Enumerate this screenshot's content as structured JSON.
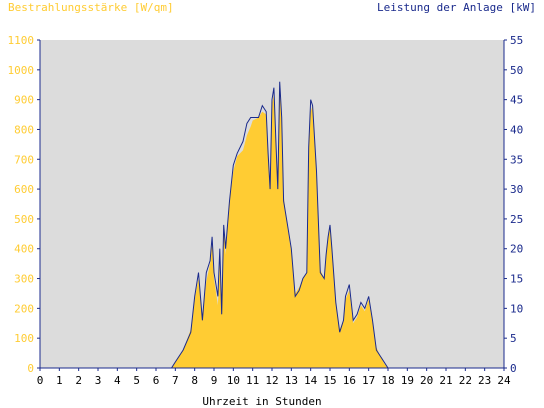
{
  "colors": {
    "irradiance": "#ffcc33",
    "power": "#1a2a8c",
    "plot_bg": "#dcdcdc",
    "axis": "#1a2a8c"
  },
  "chart_data": {
    "type": "area",
    "left_title": "Bestrahlungsstärke [W/qm]",
    "right_title": "Leistung der Anlage [kW]",
    "xlabel": "Uhrzeit in Stunden",
    "x_ticks": [
      0,
      1,
      2,
      3,
      4,
      5,
      6,
      7,
      8,
      9,
      10,
      11,
      12,
      13,
      14,
      15,
      16,
      17,
      18,
      19,
      20,
      21,
      22,
      23,
      24
    ],
    "y_left_ticks": [
      0,
      100,
      200,
      300,
      400,
      500,
      600,
      700,
      800,
      900,
      1000,
      1100
    ],
    "y_right_ticks": [
      0,
      5,
      10,
      15,
      20,
      25,
      30,
      35,
      40,
      45,
      50,
      55
    ],
    "xlim": [
      0,
      24
    ],
    "ylim_left": [
      0,
      1100
    ],
    "ylim_right": [
      0,
      55
    ],
    "series": [
      {
        "name": "Bestrahlungsstärke",
        "axis": "left",
        "style": "filled-area",
        "points": [
          [
            0,
            0
          ],
          [
            6.8,
            0
          ],
          [
            7.0,
            20
          ],
          [
            7.4,
            60
          ],
          [
            7.8,
            130
          ],
          [
            8.0,
            230
          ],
          [
            8.2,
            300
          ],
          [
            8.4,
            170
          ],
          [
            8.6,
            290
          ],
          [
            8.8,
            350
          ],
          [
            8.9,
            420
          ],
          [
            9.0,
            300
          ],
          [
            9.2,
            210
          ],
          [
            9.3,
            360
          ],
          [
            9.4,
            180
          ],
          [
            9.5,
            480
          ],
          [
            9.6,
            380
          ],
          [
            9.8,
            560
          ],
          [
            10.0,
            660
          ],
          [
            10.2,
            710
          ],
          [
            10.5,
            730
          ],
          [
            10.7,
            780
          ],
          [
            10.9,
            810
          ],
          [
            11.0,
            830
          ],
          [
            11.3,
            840
          ],
          [
            11.5,
            860
          ],
          [
            11.7,
            850
          ],
          [
            11.8,
            710
          ],
          [
            11.9,
            600
          ],
          [
            12.0,
            880
          ],
          [
            12.1,
            920
          ],
          [
            12.2,
            750
          ],
          [
            12.3,
            600
          ],
          [
            12.4,
            940
          ],
          [
            12.5,
            820
          ],
          [
            12.6,
            580
          ],
          [
            12.8,
            470
          ],
          [
            13.0,
            390
          ],
          [
            13.2,
            250
          ],
          [
            13.4,
            270
          ],
          [
            13.6,
            300
          ],
          [
            13.8,
            320
          ],
          [
            13.9,
            720
          ],
          [
            14.0,
            860
          ],
          [
            14.1,
            880
          ],
          [
            14.3,
            650
          ],
          [
            14.5,
            330
          ],
          [
            14.7,
            300
          ],
          [
            14.8,
            380
          ],
          [
            14.9,
            440
          ],
          [
            15.0,
            480
          ],
          [
            15.1,
            400
          ],
          [
            15.3,
            220
          ],
          [
            15.5,
            130
          ],
          [
            15.7,
            160
          ],
          [
            15.8,
            230
          ],
          [
            16.0,
            260
          ],
          [
            16.2,
            150
          ],
          [
            16.4,
            170
          ],
          [
            16.6,
            210
          ],
          [
            16.8,
            190
          ],
          [
            17.0,
            230
          ],
          [
            17.2,
            150
          ],
          [
            17.4,
            70
          ],
          [
            17.6,
            40
          ],
          [
            17.8,
            15
          ],
          [
            18.0,
            0
          ],
          [
            24,
            0
          ]
        ]
      },
      {
        "name": "Leistung der Anlage",
        "axis": "right",
        "style": "line",
        "points": [
          [
            0,
            0
          ],
          [
            6.8,
            0
          ],
          [
            7.0,
            1
          ],
          [
            7.4,
            3
          ],
          [
            7.8,
            6
          ],
          [
            8.0,
            12
          ],
          [
            8.2,
            16
          ],
          [
            8.4,
            8
          ],
          [
            8.6,
            16
          ],
          [
            8.8,
            18
          ],
          [
            8.9,
            22
          ],
          [
            9.0,
            16
          ],
          [
            9.2,
            12
          ],
          [
            9.3,
            20
          ],
          [
            9.4,
            9
          ],
          [
            9.5,
            24
          ],
          [
            9.6,
            20
          ],
          [
            9.8,
            28
          ],
          [
            10.0,
            34
          ],
          [
            10.2,
            36
          ],
          [
            10.5,
            38
          ],
          [
            10.7,
            41
          ],
          [
            10.9,
            42
          ],
          [
            11.0,
            42
          ],
          [
            11.3,
            42
          ],
          [
            11.5,
            44
          ],
          [
            11.7,
            43
          ],
          [
            11.8,
            36
          ],
          [
            11.9,
            30
          ],
          [
            12.0,
            45
          ],
          [
            12.1,
            47
          ],
          [
            12.2,
            38
          ],
          [
            12.3,
            30
          ],
          [
            12.4,
            48
          ],
          [
            12.5,
            42
          ],
          [
            12.6,
            28
          ],
          [
            12.8,
            24
          ],
          [
            13.0,
            20
          ],
          [
            13.2,
            12
          ],
          [
            13.4,
            13
          ],
          [
            13.6,
            15
          ],
          [
            13.8,
            16
          ],
          [
            13.9,
            37
          ],
          [
            14.0,
            45
          ],
          [
            14.1,
            44
          ],
          [
            14.3,
            33
          ],
          [
            14.5,
            16
          ],
          [
            14.7,
            15
          ],
          [
            14.8,
            19
          ],
          [
            14.9,
            22
          ],
          [
            15.0,
            24
          ],
          [
            15.1,
            20
          ],
          [
            15.3,
            11
          ],
          [
            15.5,
            6
          ],
          [
            15.7,
            8
          ],
          [
            15.8,
            12
          ],
          [
            16.0,
            14
          ],
          [
            16.2,
            8
          ],
          [
            16.4,
            9
          ],
          [
            16.6,
            11
          ],
          [
            16.8,
            10
          ],
          [
            17.0,
            12
          ],
          [
            17.2,
            8
          ],
          [
            17.4,
            3
          ],
          [
            17.6,
            2
          ],
          [
            17.8,
            1
          ],
          [
            18.0,
            0
          ],
          [
            24,
            0
          ]
        ]
      }
    ]
  }
}
